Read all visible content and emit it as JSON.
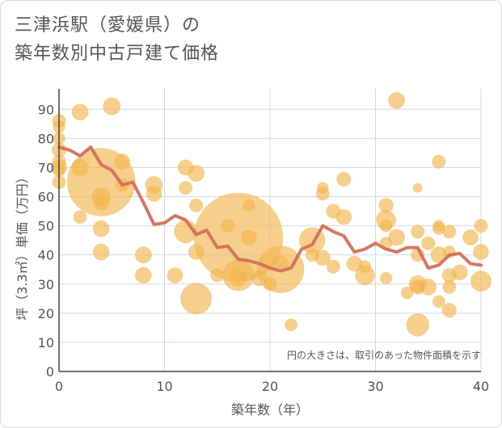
{
  "chart_data": {
    "type": "scatter",
    "title": "三津浜駅（愛媛県）の",
    "subtitle": "築年数別中古戸建て価格",
    "xlabel": "築年数（年）",
    "ylabel": "坪（3.3㎡）単価（万円）",
    "xlim": [
      0,
      40
    ],
    "ylim": [
      0,
      97
    ],
    "xticks": [
      0,
      10,
      20,
      30,
      40
    ],
    "yticks": [
      0,
      10,
      20,
      30,
      40,
      50,
      60,
      70,
      80,
      90
    ],
    "grid": true,
    "annotation": "円の大きさは、取引のあった物件面積を示す",
    "colors": {
      "bubble": "#f2b54e",
      "line": "#d4705a",
      "grid": "#cfd9e6",
      "text": "#555555"
    },
    "bubbles": [
      {
        "x": 0,
        "y": 86,
        "s": 1.3
      },
      {
        "x": 0,
        "y": 84,
        "s": 1.2
      },
      {
        "x": 0,
        "y": 80,
        "s": 1.2
      },
      {
        "x": 0,
        "y": 76,
        "s": 1.4
      },
      {
        "x": 0,
        "y": 72,
        "s": 1.3
      },
      {
        "x": 0,
        "y": 70,
        "s": 1.5
      },
      {
        "x": 0,
        "y": 69,
        "s": 1.2
      },
      {
        "x": 0,
        "y": 65,
        "s": 1.3
      },
      {
        "x": 2,
        "y": 89,
        "s": 1.6
      },
      {
        "x": 2,
        "y": 70,
        "s": 1.7
      },
      {
        "x": 2,
        "y": 53,
        "s": 1.3
      },
      {
        "x": 4,
        "y": 65,
        "s": 6.5
      },
      {
        "x": 4,
        "y": 60,
        "s": 1.8
      },
      {
        "x": 4,
        "y": 58,
        "s": 1.5
      },
      {
        "x": 4,
        "y": 49,
        "s": 1.6
      },
      {
        "x": 4,
        "y": 41,
        "s": 1.6
      },
      {
        "x": 5,
        "y": 91,
        "s": 1.7
      },
      {
        "x": 6,
        "y": 72,
        "s": 1.5
      },
      {
        "x": 6,
        "y": 64,
        "s": 1.3
      },
      {
        "x": 8,
        "y": 40,
        "s": 1.6
      },
      {
        "x": 8,
        "y": 33,
        "s": 1.6
      },
      {
        "x": 9,
        "y": 64,
        "s": 1.7
      },
      {
        "x": 9,
        "y": 61,
        "s": 1.5
      },
      {
        "x": 11,
        "y": 33,
        "s": 1.5
      },
      {
        "x": 12,
        "y": 70,
        "s": 1.5
      },
      {
        "x": 12,
        "y": 63,
        "s": 1.3
      },
      {
        "x": 12,
        "y": 48,
        "s": 2.2
      },
      {
        "x": 13,
        "y": 68,
        "s": 1.6
      },
      {
        "x": 13,
        "y": 57,
        "s": 1.3
      },
      {
        "x": 13,
        "y": 41,
        "s": 1.5
      },
      {
        "x": 13,
        "y": 25,
        "s": 3.0
      },
      {
        "x": 15,
        "y": 33,
        "s": 1.3
      },
      {
        "x": 16,
        "y": 50,
        "s": 1.3
      },
      {
        "x": 17,
        "y": 46,
        "s": 8.5
      },
      {
        "x": 17,
        "y": 33,
        "s": 3.0
      },
      {
        "x": 17,
        "y": 32,
        "s": 1.6
      },
      {
        "x": 18,
        "y": 57,
        "s": 1.2
      },
      {
        "x": 18,
        "y": 46,
        "s": 1.5
      },
      {
        "x": 19,
        "y": 32,
        "s": 1.5
      },
      {
        "x": 20,
        "y": 30,
        "s": 1.3
      },
      {
        "x": 21,
        "y": 35,
        "s": 4.5
      },
      {
        "x": 21,
        "y": 37,
        "s": 1.6
      },
      {
        "x": 22,
        "y": 16,
        "s": 1.2
      },
      {
        "x": 24,
        "y": 45,
        "s": 2.5
      },
      {
        "x": 24,
        "y": 40,
        "s": 1.3
      },
      {
        "x": 25,
        "y": 63,
        "s": 1.1
      },
      {
        "x": 25,
        "y": 61,
        "s": 1.3
      },
      {
        "x": 25,
        "y": 39,
        "s": 1.5
      },
      {
        "x": 26,
        "y": 55,
        "s": 1.4
      },
      {
        "x": 26,
        "y": 36,
        "s": 1.3
      },
      {
        "x": 27,
        "y": 66,
        "s": 1.4
      },
      {
        "x": 27,
        "y": 53,
        "s": 1.5
      },
      {
        "x": 28,
        "y": 37,
        "s": 1.5
      },
      {
        "x": 29,
        "y": 36,
        "s": 1.2
      },
      {
        "x": 29,
        "y": 33,
        "s": 1.9
      },
      {
        "x": 31,
        "y": 57,
        "s": 1.4
      },
      {
        "x": 31,
        "y": 52,
        "s": 1.9
      },
      {
        "x": 31,
        "y": 50,
        "s": 1.2
      },
      {
        "x": 31,
        "y": 44,
        "s": 1.2
      },
      {
        "x": 31,
        "y": 32,
        "s": 1.2
      },
      {
        "x": 32,
        "y": 93,
        "s": 1.6
      },
      {
        "x": 32,
        "y": 46,
        "s": 1.6
      },
      {
        "x": 33,
        "y": 27,
        "s": 1.2
      },
      {
        "x": 34,
        "y": 63,
        "s": 0.9
      },
      {
        "x": 34,
        "y": 48,
        "s": 1.3
      },
      {
        "x": 34,
        "y": 40,
        "s": 1.3
      },
      {
        "x": 34,
        "y": 30,
        "s": 1.7
      },
      {
        "x": 34,
        "y": 29,
        "s": 1.4
      },
      {
        "x": 34,
        "y": 16,
        "s": 2.2
      },
      {
        "x": 35,
        "y": 44,
        "s": 1.3
      },
      {
        "x": 35,
        "y": 29,
        "s": 1.6
      },
      {
        "x": 36,
        "y": 72,
        "s": 1.3
      },
      {
        "x": 36,
        "y": 50,
        "s": 1.1
      },
      {
        "x": 36,
        "y": 49,
        "s": 1.2
      },
      {
        "x": 36,
        "y": 40,
        "s": 1.6
      },
      {
        "x": 36,
        "y": 24,
        "s": 1.2
      },
      {
        "x": 37,
        "y": 48,
        "s": 1.3
      },
      {
        "x": 37,
        "y": 41,
        "s": 1.2
      },
      {
        "x": 37,
        "y": 33,
        "s": 1.4
      },
      {
        "x": 37,
        "y": 29,
        "s": 1.3
      },
      {
        "x": 37,
        "y": 21,
        "s": 1.4
      },
      {
        "x": 38,
        "y": 34,
        "s": 1.5
      },
      {
        "x": 39,
        "y": 46,
        "s": 1.5
      },
      {
        "x": 40,
        "y": 50,
        "s": 1.3
      },
      {
        "x": 40,
        "y": 41,
        "s": 1.5
      },
      {
        "x": 40,
        "y": 31,
        "s": 2.0
      }
    ],
    "trend_x": [
      0,
      1,
      2,
      3,
      4,
      5,
      6,
      7,
      8,
      9,
      10,
      11,
      12,
      13,
      14,
      15,
      16,
      17,
      18,
      19,
      20,
      21,
      22,
      23,
      24,
      25,
      26,
      27,
      28,
      29,
      30,
      31,
      32,
      33,
      34,
      35,
      36,
      37,
      38,
      39,
      40
    ],
    "trend_y": [
      77,
      76,
      74,
      77,
      71,
      69,
      64,
      65,
      58,
      50.5,
      51,
      53.5,
      52,
      47,
      48.5,
      42.5,
      43,
      38.5,
      38,
      37,
      35.5,
      34.5,
      35.5,
      42,
      43.5,
      50,
      48,
      46.5,
      41,
      42,
      44,
      42,
      41,
      42.5,
      42.5,
      35.5,
      36.5,
      40,
      40.5,
      37,
      36.5
    ]
  }
}
